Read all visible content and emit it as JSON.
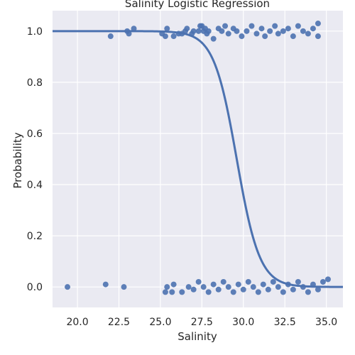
{
  "chart_data": {
    "type": "scatter",
    "title": "Salinity Logistic Regression",
    "xlabel": "Salinity",
    "ylabel": "Probability",
    "xlim": [
      18.5,
      36.0
    ],
    "ylim": [
      -0.08,
      1.08
    ],
    "xticks": [
      "20.0",
      "22.5",
      "25.0",
      "27.5",
      "30.0",
      "32.5",
      "35.0"
    ],
    "yticks": [
      "0.0",
      "0.2",
      "0.4",
      "0.6",
      "0.8",
      "1.0"
    ],
    "grid": true,
    "colors": {
      "background": "#eaeaf2",
      "grid": "#ffffff",
      "points": "#4c72b0",
      "line": "#4c72b0",
      "band": "#4c72b0"
    },
    "logistic_fit": {
      "x_range": [
        18.5,
        36.0
      ],
      "midpoint": 29.6,
      "slope": -1.45,
      "ci_halfwidth": 0.025
    },
    "points_class1": [
      [
        22.0,
        0.98
      ],
      [
        23.1,
        0.99
      ],
      [
        23.0,
        1.0
      ],
      [
        23.4,
        1.01
      ],
      [
        25.1,
        0.99
      ],
      [
        25.4,
        1.01
      ],
      [
        25.3,
        0.98
      ],
      [
        25.8,
        0.98
      ],
      [
        26.1,
        0.99
      ],
      [
        26.3,
        0.99
      ],
      [
        26.5,
        1.0
      ],
      [
        26.6,
        1.01
      ],
      [
        26.9,
        0.99
      ],
      [
        27.0,
        1.0
      ],
      [
        27.3,
        1.0
      ],
      [
        27.4,
        1.02
      ],
      [
        27.5,
        1.02
      ],
      [
        27.6,
        1.0
      ],
      [
        27.7,
        1.01
      ],
      [
        27.8,
        0.99
      ],
      [
        27.9,
        1.0
      ],
      [
        28.2,
        0.97
      ],
      [
        28.5,
        1.01
      ],
      [
        28.7,
        1.0
      ],
      [
        28.9,
        1.02
      ],
      [
        29.1,
        0.99
      ],
      [
        29.4,
        1.01
      ],
      [
        29.6,
        1.0
      ],
      [
        29.9,
        0.98
      ],
      [
        30.2,
        1.0
      ],
      [
        30.5,
        1.02
      ],
      [
        30.8,
        0.99
      ],
      [
        31.1,
        1.01
      ],
      [
        31.3,
        0.98
      ],
      [
        31.6,
        1.0
      ],
      [
        31.9,
        1.02
      ],
      [
        32.1,
        0.99
      ],
      [
        32.4,
        1.0
      ],
      [
        32.7,
        1.01
      ],
      [
        33.0,
        0.98
      ],
      [
        33.3,
        1.02
      ],
      [
        33.6,
        1.0
      ],
      [
        33.9,
        0.99
      ],
      [
        34.2,
        1.01
      ],
      [
        34.5,
        0.98
      ],
      [
        34.5,
        1.03
      ]
    ],
    "points_class0": [
      [
        19.4,
        0.0
      ],
      [
        21.7,
        0.01
      ],
      [
        22.8,
        0.0
      ],
      [
        25.3,
        -0.02
      ],
      [
        25.4,
        0.0
      ],
      [
        25.7,
        -0.02
      ],
      [
        25.8,
        0.01
      ],
      [
        26.3,
        -0.02
      ],
      [
        26.7,
        0.0
      ],
      [
        27.0,
        -0.01
      ],
      [
        27.3,
        0.02
      ],
      [
        27.6,
        0.0
      ],
      [
        27.9,
        -0.02
      ],
      [
        28.2,
        0.01
      ],
      [
        28.5,
        -0.01
      ],
      [
        28.8,
        0.02
      ],
      [
        29.1,
        0.0
      ],
      [
        29.4,
        -0.02
      ],
      [
        29.7,
        0.01
      ],
      [
        30.0,
        -0.01
      ],
      [
        30.3,
        0.02
      ],
      [
        30.6,
        0.0
      ],
      [
        30.9,
        -0.02
      ],
      [
        31.2,
        0.01
      ],
      [
        31.5,
        -0.01
      ],
      [
        31.8,
        0.02
      ],
      [
        32.1,
        0.0
      ],
      [
        32.4,
        -0.02
      ],
      [
        32.7,
        0.01
      ],
      [
        33.0,
        -0.01
      ],
      [
        33.3,
        0.02
      ],
      [
        33.6,
        0.0
      ],
      [
        33.9,
        -0.02
      ],
      [
        34.2,
        0.01
      ],
      [
        34.5,
        -0.01
      ],
      [
        34.8,
        0.02
      ],
      [
        35.1,
        0.03
      ]
    ]
  }
}
